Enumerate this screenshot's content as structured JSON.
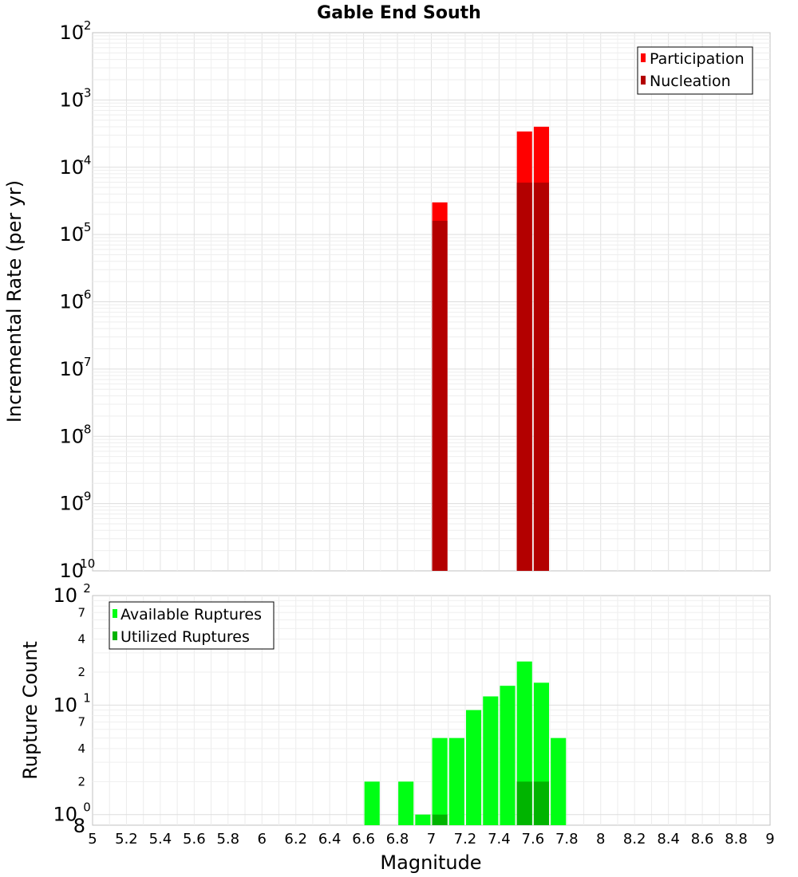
{
  "chart_data": [
    {
      "type": "bar",
      "title": "Gable End South",
      "xlabel": "",
      "ylabel": "Incremental Rate (per yr)",
      "yscale": "log",
      "ylim": [
        1e-10,
        0.01
      ],
      "xlim": [
        5,
        9
      ],
      "y_ticks": [
        {
          "base": "10",
          "exp": "-10"
        },
        {
          "base": "10",
          "exp": "-9"
        },
        {
          "base": "10",
          "exp": "-8"
        },
        {
          "base": "10",
          "exp": "-7"
        },
        {
          "base": "10",
          "exp": "-6"
        },
        {
          "base": "10",
          "exp": "-5"
        },
        {
          "base": "10",
          "exp": "-4"
        },
        {
          "base": "10",
          "exp": "-3"
        },
        {
          "base": "10",
          "exp": "-2"
        }
      ],
      "legend_position": "top-right",
      "series": [
        {
          "name": "Participation",
          "color": "#ff0000",
          "x": [
            7.05,
            7.55,
            7.65
          ],
          "values": [
            3e-05,
            0.00034,
            0.0004
          ]
        },
        {
          "name": "Nucleation",
          "color": "#b30000",
          "x": [
            7.05,
            7.55,
            7.65
          ],
          "values": [
            1.6e-05,
            5.9e-05,
            5.9e-05
          ]
        }
      ],
      "grid": true
    },
    {
      "type": "bar",
      "title": "",
      "xlabel": "Magnitude",
      "ylabel": "Rupture Count",
      "yscale": "log",
      "ylim": [
        0.8,
        100
      ],
      "xlim": [
        5,
        9
      ],
      "y_major_ticks": [
        {
          "value": 1,
          "base": "10",
          "exp": "0"
        },
        {
          "value": 10,
          "base": "10",
          "exp": "1"
        },
        {
          "value": 100,
          "base": "10",
          "exp": "2"
        }
      ],
      "y_minor_ticks": [
        {
          "value": 0.8,
          "label": "8"
        },
        {
          "value": 2,
          "label": "2"
        },
        {
          "value": 4,
          "label": "4"
        },
        {
          "value": 7,
          "label": "7"
        },
        {
          "value": 20,
          "label": "2"
        },
        {
          "value": 40,
          "label": "4"
        },
        {
          "value": 70,
          "label": "7"
        }
      ],
      "x_tick_labels": [
        "5",
        "5.2",
        "5.4",
        "5.6",
        "5.8",
        "6",
        "6.2",
        "6.4",
        "6.6",
        "6.8",
        "7",
        "7.2",
        "7.4",
        "7.6",
        "7.8",
        "8",
        "8.2",
        "8.4",
        "8.6",
        "8.8",
        "9"
      ],
      "legend_position": "top-left",
      "series": [
        {
          "name": "Available Ruptures",
          "color": "#00ff14",
          "x": [
            6.65,
            6.85,
            6.95,
            7.05,
            7.15,
            7.25,
            7.35,
            7.45,
            7.55,
            7.65,
            7.75
          ],
          "values": [
            2,
            2,
            1,
            5,
            5,
            9,
            12,
            15,
            25,
            16,
            5
          ]
        },
        {
          "name": "Utilized Ruptures",
          "color": "#00b400",
          "x": [
            7.05,
            7.55,
            7.65
          ],
          "values": [
            1,
            2,
            2
          ]
        }
      ],
      "grid": true
    }
  ]
}
